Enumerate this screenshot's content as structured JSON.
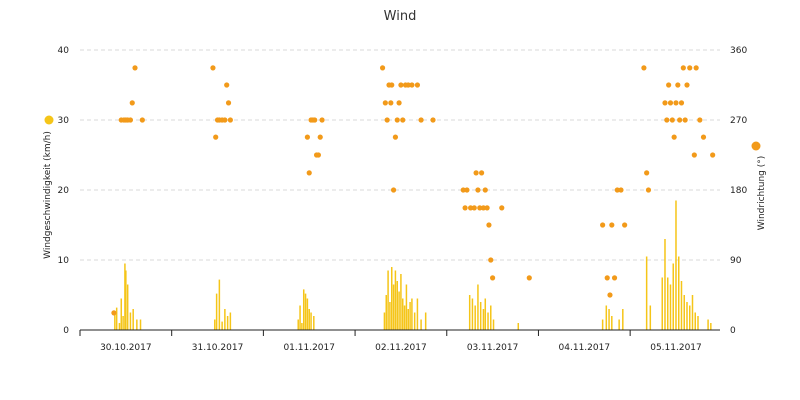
{
  "chart_data": {
    "type": "combo",
    "title": "Wind",
    "x_categories": [
      "30.10.2017",
      "31.10.2017",
      "01.11.2017",
      "02.11.2017",
      "03.11.2017",
      "04.11.2017",
      "05.11.2017"
    ],
    "left_axis": {
      "label": "Windgeschwindigkeit (km/h)",
      "ticks": [
        0,
        10,
        20,
        30,
        40
      ],
      "range": [
        0,
        40
      ]
    },
    "right_axis": {
      "label": "Windrichtung (°)",
      "ticks": [
        0,
        90,
        180,
        270,
        360
      ],
      "range": [
        0,
        360
      ]
    },
    "grid": true,
    "colors": {
      "speed": "#f5c518",
      "direction": "#f29a1a",
      "legend_speed_marker": "#f5c518",
      "legend_direction_marker": "#f29a1a"
    },
    "series": [
      {
        "type": "bar",
        "axis": "left",
        "points": [
          [
            0.38,
            2.5
          ],
          [
            0.4,
            3.2
          ],
          [
            0.43,
            1.0
          ],
          [
            0.45,
            4.5
          ],
          [
            0.47,
            2.0
          ],
          [
            0.49,
            9.5
          ],
          [
            0.5,
            8.5
          ],
          [
            0.52,
            6.5
          ],
          [
            0.55,
            2.5
          ],
          [
            0.58,
            3.0
          ],
          [
            0.62,
            1.5
          ],
          [
            0.66,
            1.5
          ],
          [
            1.47,
            1.5
          ],
          [
            1.49,
            5.2
          ],
          [
            1.52,
            7.2
          ],
          [
            1.55,
            1.2
          ],
          [
            1.58,
            3.0
          ],
          [
            1.61,
            2.0
          ],
          [
            1.64,
            2.5
          ],
          [
            2.38,
            1.5
          ],
          [
            2.4,
            3.5
          ],
          [
            2.42,
            1.0
          ],
          [
            2.44,
            5.8
          ],
          [
            2.46,
            5.2
          ],
          [
            2.48,
            4.5
          ],
          [
            2.5,
            3.0
          ],
          [
            2.52,
            2.5
          ],
          [
            2.55,
            2.0
          ],
          [
            3.32,
            2.5
          ],
          [
            3.34,
            5.0
          ],
          [
            3.36,
            8.5
          ],
          [
            3.38,
            4.0
          ],
          [
            3.4,
            9.0
          ],
          [
            3.42,
            6.5
          ],
          [
            3.44,
            8.5
          ],
          [
            3.46,
            7.0
          ],
          [
            3.48,
            5.5
          ],
          [
            3.5,
            8.0
          ],
          [
            3.52,
            4.5
          ],
          [
            3.54,
            3.5
          ],
          [
            3.56,
            6.5
          ],
          [
            3.58,
            3.0
          ],
          [
            3.6,
            4.0
          ],
          [
            3.62,
            4.5
          ],
          [
            3.65,
            2.5
          ],
          [
            3.68,
            4.5
          ],
          [
            3.72,
            1.5
          ],
          [
            3.77,
            2.5
          ],
          [
            4.25,
            5.0
          ],
          [
            4.28,
            4.5
          ],
          [
            4.31,
            3.5
          ],
          [
            4.34,
            6.5
          ],
          [
            4.37,
            4.0
          ],
          [
            4.4,
            3.0
          ],
          [
            4.42,
            4.5
          ],
          [
            4.45,
            2.5
          ],
          [
            4.48,
            3.5
          ],
          [
            4.51,
            1.5
          ],
          [
            4.78,
            1.0
          ],
          [
            5.7,
            1.5
          ],
          [
            5.74,
            3.5
          ],
          [
            5.77,
            3.0
          ],
          [
            5.8,
            2.0
          ],
          [
            5.88,
            1.5
          ],
          [
            5.92,
            3.0
          ],
          [
            6.18,
            10.5
          ],
          [
            6.22,
            3.5
          ],
          [
            6.35,
            7.5
          ],
          [
            6.38,
            13.0
          ],
          [
            6.41,
            7.5
          ],
          [
            6.44,
            6.5
          ],
          [
            6.47,
            9.5
          ],
          [
            6.5,
            18.5
          ],
          [
            6.53,
            10.5
          ],
          [
            6.56,
            7.0
          ],
          [
            6.59,
            5.0
          ],
          [
            6.62,
            4.0
          ],
          [
            6.65,
            3.5
          ],
          [
            6.68,
            5.0
          ],
          [
            6.71,
            2.5
          ],
          [
            6.74,
            2.0
          ],
          [
            6.85,
            1.5
          ],
          [
            6.88,
            1.0
          ]
        ]
      },
      {
        "type": "scatter",
        "axis": "right",
        "points": [
          [
            0.37,
            22
          ],
          [
            0.45,
            270
          ],
          [
            0.48,
            270
          ],
          [
            0.5,
            270
          ],
          [
            0.52,
            270
          ],
          [
            0.55,
            270
          ],
          [
            0.57,
            292
          ],
          [
            0.6,
            337
          ],
          [
            0.68,
            270
          ],
          [
            1.45,
            337
          ],
          [
            1.48,
            248
          ],
          [
            1.5,
            270
          ],
          [
            1.52,
            270
          ],
          [
            1.55,
            270
          ],
          [
            1.58,
            270
          ],
          [
            1.6,
            315
          ],
          [
            1.62,
            292
          ],
          [
            1.64,
            270
          ],
          [
            2.48,
            248
          ],
          [
            2.5,
            202
          ],
          [
            2.52,
            270
          ],
          [
            2.54,
            270
          ],
          [
            2.56,
            270
          ],
          [
            2.58,
            225
          ],
          [
            2.6,
            225
          ],
          [
            2.62,
            248
          ],
          [
            2.64,
            270
          ],
          [
            3.3,
            337
          ],
          [
            3.33,
            292
          ],
          [
            3.35,
            270
          ],
          [
            3.37,
            315
          ],
          [
            3.39,
            292
          ],
          [
            3.4,
            315
          ],
          [
            3.42,
            180
          ],
          [
            3.44,
            248
          ],
          [
            3.46,
            270
          ],
          [
            3.48,
            292
          ],
          [
            3.5,
            315
          ],
          [
            3.52,
            270
          ],
          [
            3.55,
            315
          ],
          [
            3.58,
            315
          ],
          [
            3.62,
            315
          ],
          [
            3.68,
            315
          ],
          [
            3.72,
            270
          ],
          [
            3.85,
            270
          ],
          [
            4.18,
            180
          ],
          [
            4.2,
            157
          ],
          [
            4.22,
            180
          ],
          [
            4.26,
            157
          ],
          [
            4.3,
            157
          ],
          [
            4.32,
            202
          ],
          [
            4.34,
            180
          ],
          [
            4.36,
            157
          ],
          [
            4.38,
            202
          ],
          [
            4.4,
            157
          ],
          [
            4.42,
            180
          ],
          [
            4.44,
            157
          ],
          [
            4.46,
            135
          ],
          [
            4.48,
            90
          ],
          [
            4.5,
            67
          ],
          [
            4.6,
            157
          ],
          [
            4.9,
            67
          ],
          [
            5.7,
            135
          ],
          [
            5.75,
            67
          ],
          [
            5.78,
            45
          ],
          [
            5.8,
            135
          ],
          [
            5.83,
            67
          ],
          [
            5.86,
            180
          ],
          [
            5.9,
            180
          ],
          [
            5.94,
            135
          ],
          [
            6.15,
            337
          ],
          [
            6.18,
            202
          ],
          [
            6.2,
            180
          ],
          [
            6.38,
            292
          ],
          [
            6.4,
            270
          ],
          [
            6.42,
            315
          ],
          [
            6.44,
            292
          ],
          [
            6.46,
            270
          ],
          [
            6.48,
            248
          ],
          [
            6.5,
            292
          ],
          [
            6.52,
            315
          ],
          [
            6.54,
            270
          ],
          [
            6.56,
            292
          ],
          [
            6.58,
            337
          ],
          [
            6.6,
            270
          ],
          [
            6.62,
            315
          ],
          [
            6.65,
            337
          ],
          [
            6.7,
            225
          ],
          [
            6.72,
            337
          ],
          [
            6.76,
            270
          ],
          [
            6.8,
            248
          ],
          [
            6.9,
            225
          ]
        ]
      }
    ]
  }
}
